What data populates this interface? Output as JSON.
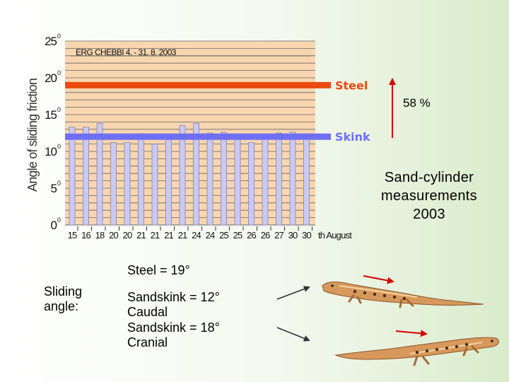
{
  "chart_data": {
    "type": "bar",
    "title": "ERG CHEBBI 4. - 31. 8. 2003",
    "ylabel": "Angle of sliding friction",
    "ylim": [
      0,
      25
    ],
    "ytick_labels": [
      "0",
      "5",
      "10",
      "15",
      "20",
      "25"
    ],
    "ytick_unit": "0",
    "categories": [
      "15",
      "16",
      "18",
      "20",
      "20",
      "21",
      "21",
      "21",
      "21",
      "24",
      "24",
      "25",
      "25",
      "26",
      "26",
      "27",
      "30",
      "30"
    ],
    "x_suffix": "th August",
    "values": [
      13.3,
      13.3,
      13.8,
      11.2,
      11.2,
      12.4,
      11.0,
      11.9,
      13.5,
      13.8,
      12.5,
      12.6,
      12.2,
      11.2,
      11.9,
      12.5,
      12.6,
      12.4
    ],
    "reference_lines": [
      {
        "name": "Steel",
        "value": 19,
        "color": "#ea4a0e"
      },
      {
        "name": "Skink",
        "value": 12,
        "color": "#6f6ff5"
      }
    ],
    "grid": true,
    "annotation": "58 %"
  },
  "colors": {
    "plot_bg": "#f8d6b0",
    "bar_fill": "#c9c9f4",
    "bar_stroke": "#8585a8",
    "steel": "#ea4a0e",
    "skink": "#6f6ff5",
    "arrow": "#d20000"
  },
  "right_note": "Sand-cylinder measurements 2003",
  "captions": {
    "steel": "Steel = 19°",
    "sliding_angle": "Sliding angle:",
    "sandskink_caudal": "Sandskink = 12° Caudal",
    "sandskink_cranial": "Sandskink = 18° Cranial"
  },
  "icons": [
    "lizard-photo-caudal",
    "lizard-photo-cranial",
    "arrow-icon"
  ]
}
